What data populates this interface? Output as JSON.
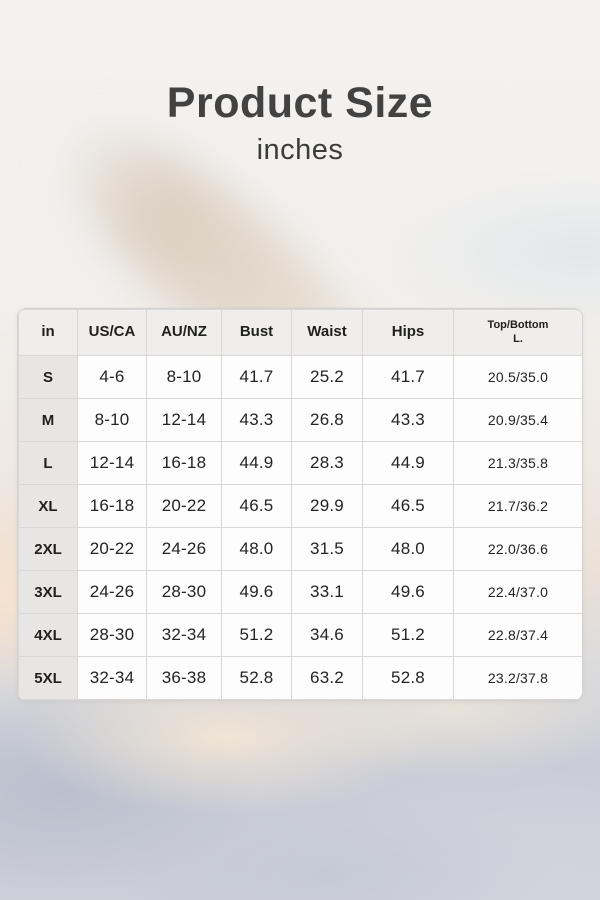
{
  "header": {
    "title": "Product Size",
    "subtitle": "inches"
  },
  "chart_data": {
    "type": "table",
    "title": "Product Size",
    "unit": "inches",
    "columns": [
      "in",
      "US/CA",
      "AU/NZ",
      "Bust",
      "Waist",
      "Hips",
      "Top/Bottom\nL."
    ],
    "rows": [
      [
        "S",
        "4-6",
        "8-10",
        "41.7",
        "25.2",
        "41.7",
        "20.5/35.0"
      ],
      [
        "M",
        "8-10",
        "12-14",
        "43.3",
        "26.8",
        "43.3",
        "20.9/35.4"
      ],
      [
        "L",
        "12-14",
        "16-18",
        "44.9",
        "28.3",
        "44.9",
        "21.3/35.8"
      ],
      [
        "XL",
        "16-18",
        "20-22",
        "46.5",
        "29.9",
        "46.5",
        "21.7/36.2"
      ],
      [
        "2XL",
        "20-22",
        "24-26",
        "48.0",
        "31.5",
        "48.0",
        "22.0/36.6"
      ],
      [
        "3XL",
        "24-26",
        "28-30",
        "49.6",
        "33.1",
        "49.6",
        "22.4/37.0"
      ],
      [
        "4XL",
        "28-30",
        "32-34",
        "51.2",
        "34.6",
        "51.2",
        "22.8/37.4"
      ],
      [
        "5XL",
        "32-34",
        "36-38",
        "52.8",
        "63.2",
        "52.8",
        "23.2/37.8"
      ]
    ]
  },
  "colors": {
    "title_text": "#424242",
    "table_header_bg": "#f0eeec",
    "size_column_bg": "#e8e6e4",
    "cell_bg": "#fdfdfd",
    "cell_border": "#dad8d6",
    "sky_top": "#f3f2f0",
    "sky_warm": "#ebe1d7",
    "sky_bottom": "#ccced8"
  }
}
